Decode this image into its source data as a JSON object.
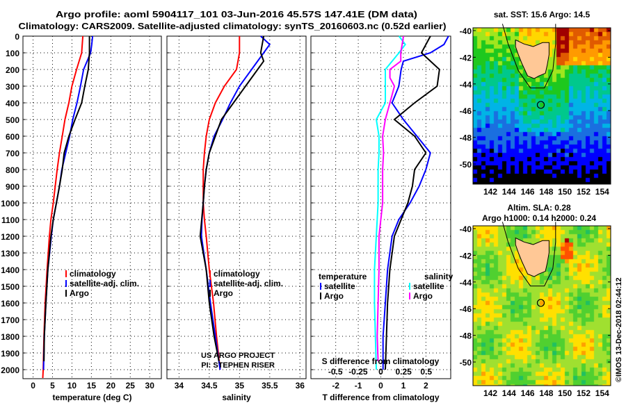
{
  "title_line1": "Argo profile: aoml 5904117_101 03-Jun-2016 45.57S 147.41E (DM data)",
  "title_line2": "Climatology: CARS2009. Satellite-adjusted climatology: synTS_20160603.nc (0.52d earlier)",
  "depth_ticks": [
    "0",
    "100",
    "200",
    "300",
    "400",
    "500",
    "600",
    "700",
    "800",
    "900",
    "1000",
    "1100",
    "1200",
    "1300",
    "1400",
    "1500",
    "1600",
    "1700",
    "1800",
    "1900",
    "2000"
  ],
  "colors": {
    "clim": "#ff0000",
    "sat": "#0000ff",
    "argo": "#000000",
    "sat_s": "#00ffff",
    "argo_s": "#ff00ff"
  },
  "credit": {
    "line1": "US ARGO PROJECT",
    "line2": "PI: STEPHEN RISER"
  },
  "timestamp": "©IMOS 13-Dec-2018 02:44:12",
  "chart_data": [
    {
      "type": "line",
      "name": "temperature",
      "xlabel": "temperature (deg C)",
      "ylabel": "depth",
      "xlim": [
        -2.6,
        33
      ],
      "ylim": [
        2050,
        0
      ],
      "xticks": [
        "0",
        "5",
        "10",
        "15",
        "20",
        "25",
        "30"
      ],
      "xtick_values": [
        0,
        5,
        10,
        15,
        20,
        25,
        30
      ],
      "legend": [
        "climatology",
        "satellite-adj. clim.",
        "Argo"
      ],
      "series": [
        {
          "name": "climatology",
          "color": "#ff0000",
          "depth": [
            0,
            100,
            200,
            300,
            400,
            500,
            600,
            700,
            800,
            900,
            1000,
            1100,
            1200,
            1400,
            1600,
            1800,
            2000,
            2050
          ],
          "values": [
            12.8,
            12.5,
            11.2,
            10,
            9.2,
            8.2,
            7.5,
            6.8,
            6.2,
            5.7,
            5.2,
            4.6,
            4.2,
            3.6,
            3.1,
            2.8,
            2.6,
            2.5
          ]
        },
        {
          "name": "satellite-adj. clim.",
          "color": "#0000ff",
          "depth": [
            0,
            50,
            100,
            200,
            300,
            400,
            500,
            600,
            700,
            800,
            900,
            1000,
            1100,
            1200,
            1400,
            1600,
            1800,
            2000
          ],
          "values": [
            15.3,
            15.1,
            14.8,
            13.0,
            12.2,
            11.3,
            10.2,
            9.4,
            8.4,
            7.4,
            6.8,
            6.0,
            5.2,
            4.7,
            3.8,
            3.3,
            2.9,
            2.7
          ]
        },
        {
          "name": "Argo",
          "color": "#000000",
          "depth": [
            0,
            100,
            200,
            300,
            400,
            500,
            600,
            700,
            800,
            900,
            1000,
            1100,
            1200,
            1400,
            1600,
            1800,
            1950
          ],
          "values": [
            14.5,
            14.5,
            14.2,
            13.3,
            12.5,
            10.8,
            9.2,
            8.0,
            7.5,
            6.8,
            6.0,
            5.2,
            4.6,
            3.8,
            3.3,
            2.9,
            2.8
          ]
        }
      ]
    },
    {
      "type": "line",
      "name": "salinity",
      "xlabel": "salinity",
      "ylabel": "depth",
      "xlim": [
        33.8,
        36.1
      ],
      "ylim": [
        2050,
        0
      ],
      "xticks": [
        "34",
        "34.5",
        "35",
        "35.5",
        "36"
      ],
      "xtick_values": [
        34,
        34.5,
        35,
        35.5,
        36
      ],
      "legend": [
        "climatology",
        "satellite-adj. clim.",
        "Argo"
      ],
      "series": [
        {
          "name": "climatology",
          "color": "#ff0000",
          "depth": [
            0,
            100,
            200,
            300,
            400,
            500,
            600,
            700,
            800,
            900,
            1000,
            1100,
            1200,
            1400,
            1600,
            1800,
            2000
          ],
          "values": [
            35.0,
            35.0,
            34.95,
            34.75,
            34.6,
            34.5,
            34.45,
            34.42,
            34.4,
            34.4,
            34.4,
            34.42,
            34.45,
            34.5,
            34.57,
            34.62,
            34.68
          ]
        },
        {
          "name": "satellite-adj. clim.",
          "color": "#0000ff",
          "depth": [
            0,
            50,
            100,
            200,
            300,
            400,
            500,
            600,
            700,
            800,
            900,
            1000,
            1100,
            1200,
            1400,
            1600,
            1800,
            2000
          ],
          "values": [
            35.35,
            35.5,
            35.4,
            35.2,
            35.0,
            34.85,
            34.72,
            34.58,
            34.5,
            34.45,
            34.42,
            34.4,
            34.38,
            34.37,
            34.45,
            34.52,
            34.6,
            34.68
          ]
        },
        {
          "name": "Argo",
          "color": "#000000",
          "depth": [
            0,
            100,
            150,
            200,
            300,
            400,
            500,
            600,
            700,
            800,
            900,
            1000,
            1200,
            1400,
            1600,
            1800,
            1950
          ],
          "values": [
            35.4,
            35.35,
            35.4,
            35.3,
            35.1,
            34.9,
            34.7,
            34.6,
            34.5,
            34.45,
            34.42,
            34.4,
            34.35,
            34.45,
            34.5,
            34.58,
            34.66
          ]
        }
      ]
    },
    {
      "type": "line",
      "name": "difference",
      "xlabel": "T difference from climatology",
      "x2label": "S difference from climatology",
      "ylabel": "depth",
      "xlim": [
        -3.1,
        3.1
      ],
      "x2lim": [
        -0.77,
        0.77
      ],
      "ylim": [
        2050,
        0
      ],
      "xticks": [
        "-2",
        "-1",
        "0",
        "1",
        "2"
      ],
      "xtick_values": [
        -2,
        -1,
        0,
        1,
        2
      ],
      "x2ticks": [
        "-0.5",
        "-0.25",
        "0",
        "0.25",
        "0.5"
      ],
      "x2tick_values": [
        -0.5,
        -0.25,
        0,
        0.25,
        0.5
      ],
      "legend_temperature": {
        "title": "temperature",
        "items": [
          "satellite",
          "Argo"
        ]
      },
      "legend_salinity": {
        "title": "salinity",
        "items": [
          "satellite",
          "Argo"
        ]
      },
      "series": [
        {
          "name": "temperature satellite",
          "axis": "T",
          "color": "#0000ff",
          "depth": [
            0,
            50,
            100,
            150,
            200,
            300,
            400,
            500,
            600,
            700,
            800,
            900,
            1000,
            1100,
            1200,
            1400,
            1600,
            1800,
            2000
          ],
          "values": [
            3,
            2.8,
            2.2,
            1,
            0.9,
            0.8,
            0.5,
            1.0,
            1.6,
            2.2,
            2.0,
            1.7,
            1.3,
            0.8,
            0.5,
            0.3,
            0.2,
            0.1,
            0.1
          ]
        },
        {
          "name": "temperature Argo",
          "axis": "T",
          "color": "#000000",
          "depth": [
            0,
            100,
            200,
            300,
            400,
            500,
            600,
            700,
            800,
            900,
            1000,
            1100,
            1200,
            1400,
            1600,
            1800,
            2000
          ],
          "values": [
            2.2,
            1.8,
            2.6,
            2.5,
            1.5,
            0.6,
            1.5,
            2.0,
            1.5,
            1.4,
            1.2,
            0.9,
            0.6,
            0.4,
            0.3,
            0.25,
            0.2
          ]
        },
        {
          "name": "salinity satellite",
          "axis": "S",
          "color": "#00ffff",
          "depth": [
            0,
            50,
            100,
            200,
            300,
            400,
            500,
            600,
            700,
            800,
            1000,
            1200,
            1400,
            1600,
            1800,
            2000
          ],
          "values": [
            0.2,
            0.27,
            0.2,
            0.05,
            0.05,
            0.05,
            -0.05,
            -0.02,
            -0.02,
            -0.03,
            -0.03,
            -0.05,
            -0.07,
            -0.07,
            -0.06,
            -0.05
          ]
        },
        {
          "name": "salinity Argo",
          "axis": "S",
          "color": "#ff00ff",
          "depth": [
            0,
            100,
            150,
            200,
            250,
            300,
            400,
            500,
            600,
            700,
            800,
            1000,
            1200,
            1400,
            1600,
            1800,
            1950
          ],
          "values": [
            0.25,
            0.22,
            0.22,
            0.1,
            0.1,
            0.15,
            0.1,
            0.05,
            0.02,
            0.03,
            0.02,
            0.02,
            -0.02,
            -0.02,
            -0.03,
            -0.04,
            -0.03
          ]
        }
      ]
    }
  ],
  "maps": [
    {
      "title": "sat. SST: 15.6 Argo: 14.5",
      "kind": "sst",
      "lat_ticks": [
        "-40",
        "-42",
        "-44",
        "-46",
        "-48",
        "-50"
      ],
      "lon_ticks": [
        "142",
        "144",
        "146",
        "148",
        "150",
        "152",
        "154"
      ],
      "argo_lon": 147.41,
      "argo_lat": -45.57
    },
    {
      "title1": "Altim. SLA: 0.28",
      "title2": "Argo h1000: 0.14 h2000: 0.24",
      "kind": "sla",
      "lat_ticks": [
        "-40",
        "-42",
        "-44",
        "-46",
        "-48",
        "-50"
      ],
      "lon_ticks": [
        "142",
        "144",
        "146",
        "148",
        "150",
        "152",
        "154"
      ],
      "argo_lon": 147.41,
      "argo_lat": -45.57
    }
  ]
}
